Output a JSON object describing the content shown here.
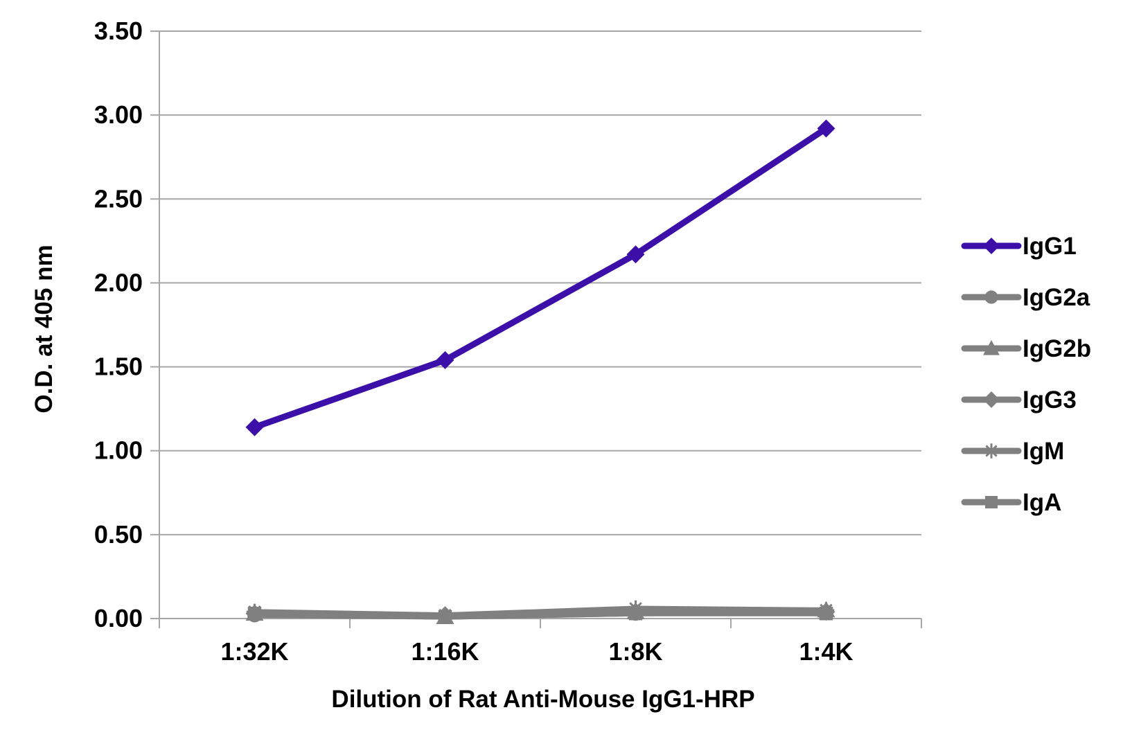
{
  "chart_data": {
    "type": "line",
    "title": "",
    "xlabel": "Dilution of Rat Anti-Mouse IgG1-HRP",
    "ylabel": "O.D. at 405 nm",
    "categories": [
      "1:32K",
      "1:16K",
      "1:8K",
      "1:4K"
    ],
    "ylim": [
      0,
      3.5
    ],
    "yticks": [
      "0.00",
      "0.50",
      "1.00",
      "1.50",
      "2.00",
      "2.50",
      "3.00",
      "3.50"
    ],
    "grid": true,
    "legend_position": "right",
    "series": [
      {
        "name": "IgG1",
        "color": "#3c10a8",
        "marker": "diamond",
        "values": [
          1.14,
          1.54,
          2.17,
          2.92
        ]
      },
      {
        "name": "IgG2a",
        "color": "#808080",
        "marker": "circle",
        "values": [
          0.02,
          0.01,
          0.03,
          0.04
        ]
      },
      {
        "name": "IgG2b",
        "color": "#808080",
        "marker": "triangle",
        "values": [
          0.03,
          0.01,
          0.04,
          0.05
        ]
      },
      {
        "name": "IgG3",
        "color": "#808080",
        "marker": "diamond",
        "values": [
          0.03,
          0.02,
          0.04,
          0.04
        ]
      },
      {
        "name": "IgM",
        "color": "#808080",
        "marker": "star",
        "values": [
          0.04,
          0.02,
          0.06,
          0.05
        ]
      },
      {
        "name": "IgA",
        "color": "#808080",
        "marker": "square",
        "values": [
          0.03,
          0.01,
          0.03,
          0.03
        ]
      }
    ]
  }
}
